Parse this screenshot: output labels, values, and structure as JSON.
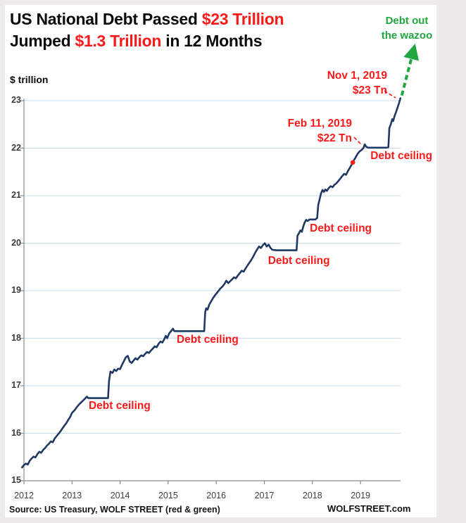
{
  "palette": {
    "bg": "#ECEBE9",
    "ink": "#0b0b0b",
    "red": "#FA1A1A",
    "green": "#21A73F",
    "navy": "#1F3864",
    "grid": "#C9DAEA",
    "axis": "#8C8C8C"
  },
  "title": {
    "line1": [
      {
        "text": "US National Debt Passed ",
        "color": "ink"
      },
      {
        "text": "$23 Trillion",
        "color": "red"
      }
    ],
    "line2": [
      {
        "text": "Jumped ",
        "color": "ink"
      },
      {
        "text": "$1.3 Trillion",
        "color": "red"
      },
      {
        "text": " in 12 Months",
        "color": "ink"
      }
    ]
  },
  "callouts": {
    "wazoo": {
      "line1": "Debt out",
      "line2": "the wazoo"
    },
    "nov": {
      "line1": "Nov 1, 2019",
      "line2": "$23 Tn",
      "pointer": [
        [
          546,
          129
        ],
        [
          562,
          139
        ]
      ]
    },
    "feb": {
      "line1": "Feb 11, 2019",
      "line2": "$22 Tn",
      "pointer": [
        [
          503,
          195
        ],
        [
          514,
          206
        ]
      ]
    }
  },
  "footer": {
    "source": "Source: US Treasury, WOLF STREET (red & green)",
    "site": "WOLFSTREET.com"
  },
  "chart_data": {
    "type": "line",
    "title": "US National Debt Passed $23 Trillion — Jumped $1.3 Trillion in 12 Months",
    "ylabel": "$ trillion",
    "xlabel": "",
    "ylim": [
      15,
      23
    ],
    "xlim": [
      2011.96,
      2019.95
    ],
    "grid": true,
    "y_ticks": [
      15,
      16,
      17,
      18,
      19,
      20,
      21,
      22,
      23
    ],
    "x_ticks": [
      2012,
      2013,
      2014,
      2015,
      2016,
      2017,
      2018,
      2019
    ],
    "series": [
      {
        "name": "US national debt ($ trillion)",
        "color": "#1F3864",
        "points": [
          [
            2011.96,
            15.28
          ],
          [
            2012.0,
            15.33
          ],
          [
            2012.04,
            15.36
          ],
          [
            2012.08,
            15.34
          ],
          [
            2012.12,
            15.42
          ],
          [
            2012.16,
            15.47
          ],
          [
            2012.2,
            15.51
          ],
          [
            2012.24,
            15.49
          ],
          [
            2012.28,
            15.56
          ],
          [
            2012.32,
            15.61
          ],
          [
            2012.36,
            15.59
          ],
          [
            2012.4,
            15.65
          ],
          [
            2012.44,
            15.69
          ],
          [
            2012.48,
            15.74
          ],
          [
            2012.52,
            15.78
          ],
          [
            2012.56,
            15.83
          ],
          [
            2012.6,
            15.81
          ],
          [
            2012.64,
            15.89
          ],
          [
            2012.68,
            15.94
          ],
          [
            2012.72,
            15.99
          ],
          [
            2012.76,
            16.04
          ],
          [
            2012.8,
            16.1
          ],
          [
            2012.84,
            16.16
          ],
          [
            2012.88,
            16.21
          ],
          [
            2012.92,
            16.28
          ],
          [
            2012.96,
            16.34
          ],
          [
            2013.0,
            16.43
          ],
          [
            2013.05,
            16.48
          ],
          [
            2013.1,
            16.55
          ],
          [
            2013.15,
            16.61
          ],
          [
            2013.2,
            16.66
          ],
          [
            2013.24,
            16.7
          ],
          [
            2013.28,
            16.74
          ],
          [
            2013.31,
            16.77
          ],
          [
            2013.34,
            16.74
          ],
          [
            2013.45,
            16.74
          ],
          [
            2013.55,
            16.74
          ],
          [
            2013.65,
            16.74
          ],
          [
            2013.75,
            16.74
          ],
          [
            2013.77,
            17.1
          ],
          [
            2013.8,
            17.3
          ],
          [
            2013.84,
            17.27
          ],
          [
            2013.88,
            17.34
          ],
          [
            2013.92,
            17.31
          ],
          [
            2013.96,
            17.36
          ],
          [
            2014.0,
            17.35
          ],
          [
            2014.04,
            17.44
          ],
          [
            2014.08,
            17.52
          ],
          [
            2014.12,
            17.6
          ],
          [
            2014.16,
            17.63
          ],
          [
            2014.2,
            17.51
          ],
          [
            2014.24,
            17.48
          ],
          [
            2014.28,
            17.53
          ],
          [
            2014.32,
            17.58
          ],
          [
            2014.36,
            17.55
          ],
          [
            2014.4,
            17.6
          ],
          [
            2014.44,
            17.64
          ],
          [
            2014.48,
            17.62
          ],
          [
            2014.52,
            17.67
          ],
          [
            2014.56,
            17.71
          ],
          [
            2014.6,
            17.69
          ],
          [
            2014.64,
            17.74
          ],
          [
            2014.68,
            17.78
          ],
          [
            2014.72,
            17.83
          ],
          [
            2014.76,
            17.81
          ],
          [
            2014.8,
            17.88
          ],
          [
            2014.84,
            17.93
          ],
          [
            2014.88,
            17.91
          ],
          [
            2014.92,
            17.98
          ],
          [
            2014.95,
            18.05
          ],
          [
            2014.98,
            18.0
          ],
          [
            2015.02,
            18.1
          ],
          [
            2015.06,
            18.15
          ],
          [
            2015.1,
            18.2
          ],
          [
            2015.13,
            18.15
          ],
          [
            2015.25,
            18.15
          ],
          [
            2015.4,
            18.15
          ],
          [
            2015.55,
            18.15
          ],
          [
            2015.7,
            18.15
          ],
          [
            2015.75,
            18.15
          ],
          [
            2015.77,
            18.55
          ],
          [
            2015.79,
            18.63
          ],
          [
            2015.82,
            18.6
          ],
          [
            2015.85,
            18.7
          ],
          [
            2015.89,
            18.77
          ],
          [
            2015.93,
            18.84
          ],
          [
            2015.97,
            18.9
          ],
          [
            2016.01,
            18.95
          ],
          [
            2016.05,
            19.0
          ],
          [
            2016.09,
            19.05
          ],
          [
            2016.13,
            19.09
          ],
          [
            2016.17,
            19.14
          ],
          [
            2016.21,
            19.21
          ],
          [
            2016.25,
            19.16
          ],
          [
            2016.29,
            19.2
          ],
          [
            2016.33,
            19.24
          ],
          [
            2016.37,
            19.28
          ],
          [
            2016.41,
            19.26
          ],
          [
            2016.45,
            19.32
          ],
          [
            2016.49,
            19.37
          ],
          [
            2016.53,
            19.42
          ],
          [
            2016.57,
            19.4
          ],
          [
            2016.61,
            19.47
          ],
          [
            2016.65,
            19.53
          ],
          [
            2016.69,
            19.59
          ],
          [
            2016.73,
            19.65
          ],
          [
            2016.77,
            19.72
          ],
          [
            2016.81,
            19.8
          ],
          [
            2016.85,
            19.87
          ],
          [
            2016.89,
            19.93
          ],
          [
            2016.93,
            19.9
          ],
          [
            2016.97,
            19.96
          ],
          [
            2017.01,
            20.0
          ],
          [
            2017.05,
            19.93
          ],
          [
            2017.09,
            19.97
          ],
          [
            2017.13,
            19.9
          ],
          [
            2017.17,
            19.86
          ],
          [
            2017.25,
            19.85
          ],
          [
            2017.4,
            19.85
          ],
          [
            2017.55,
            19.85
          ],
          [
            2017.67,
            19.85
          ],
          [
            2017.69,
            20.16
          ],
          [
            2017.72,
            20.21
          ],
          [
            2017.75,
            20.27
          ],
          [
            2017.78,
            20.24
          ],
          [
            2017.81,
            20.35
          ],
          [
            2017.84,
            20.44
          ],
          [
            2017.87,
            20.49
          ],
          [
            2017.9,
            20.47
          ],
          [
            2017.94,
            20.5
          ],
          [
            2018.0,
            20.5
          ],
          [
            2018.06,
            20.5
          ],
          [
            2018.1,
            20.53
          ],
          [
            2018.12,
            20.8
          ],
          [
            2018.15,
            20.92
          ],
          [
            2018.18,
            21.05
          ],
          [
            2018.21,
            21.12
          ],
          [
            2018.24,
            21.08
          ],
          [
            2018.27,
            21.13
          ],
          [
            2018.3,
            21.1
          ],
          [
            2018.34,
            21.16
          ],
          [
            2018.38,
            21.2
          ],
          [
            2018.42,
            21.18
          ],
          [
            2018.46,
            21.23
          ],
          [
            2018.5,
            21.26
          ],
          [
            2018.54,
            21.31
          ],
          [
            2018.58,
            21.36
          ],
          [
            2018.62,
            21.41
          ],
          [
            2018.66,
            21.46
          ],
          [
            2018.7,
            21.44
          ],
          [
            2018.74,
            21.52
          ],
          [
            2018.78,
            21.59
          ],
          [
            2018.82,
            21.66
          ],
          [
            2018.86,
            21.74
          ],
          [
            2018.9,
            21.81
          ],
          [
            2018.94,
            21.88
          ],
          [
            2018.98,
            21.93
          ],
          [
            2019.02,
            21.96
          ],
          [
            2019.06,
            22.0
          ],
          [
            2019.09,
            22.08
          ],
          [
            2019.12,
            22.03
          ],
          [
            2019.16,
            22.01
          ],
          [
            2019.25,
            22.01
          ],
          [
            2019.35,
            22.01
          ],
          [
            2019.45,
            22.01
          ],
          [
            2019.53,
            22.01
          ],
          [
            2019.58,
            22.02
          ],
          [
            2019.6,
            22.42
          ],
          [
            2019.63,
            22.5
          ],
          [
            2019.66,
            22.61
          ],
          [
            2019.68,
            22.57
          ],
          [
            2019.71,
            22.68
          ],
          [
            2019.74,
            22.76
          ],
          [
            2019.77,
            22.85
          ],
          [
            2019.8,
            22.94
          ],
          [
            2019.83,
            23.05
          ]
        ]
      }
    ],
    "red_dot": {
      "t": 2018.84,
      "v": 21.7,
      "meaning": "Nov 1, 2018 level, 12 months earlier"
    },
    "debt_ceiling_labels": [
      {
        "text": "Debt ceiling",
        "t": 2013.99,
        "v": 16.57
      },
      {
        "text": "Debt ceiling",
        "t": 2015.82,
        "v": 17.97
      },
      {
        "text": "Debt ceiling",
        "t": 2017.72,
        "v": 19.62
      },
      {
        "text": "Debt ceiling",
        "t": 2018.59,
        "v": 20.31
      },
      {
        "text": "Debt ceiling",
        "t": 2019.85,
        "v": 21.83
      }
    ],
    "legend": "none"
  }
}
